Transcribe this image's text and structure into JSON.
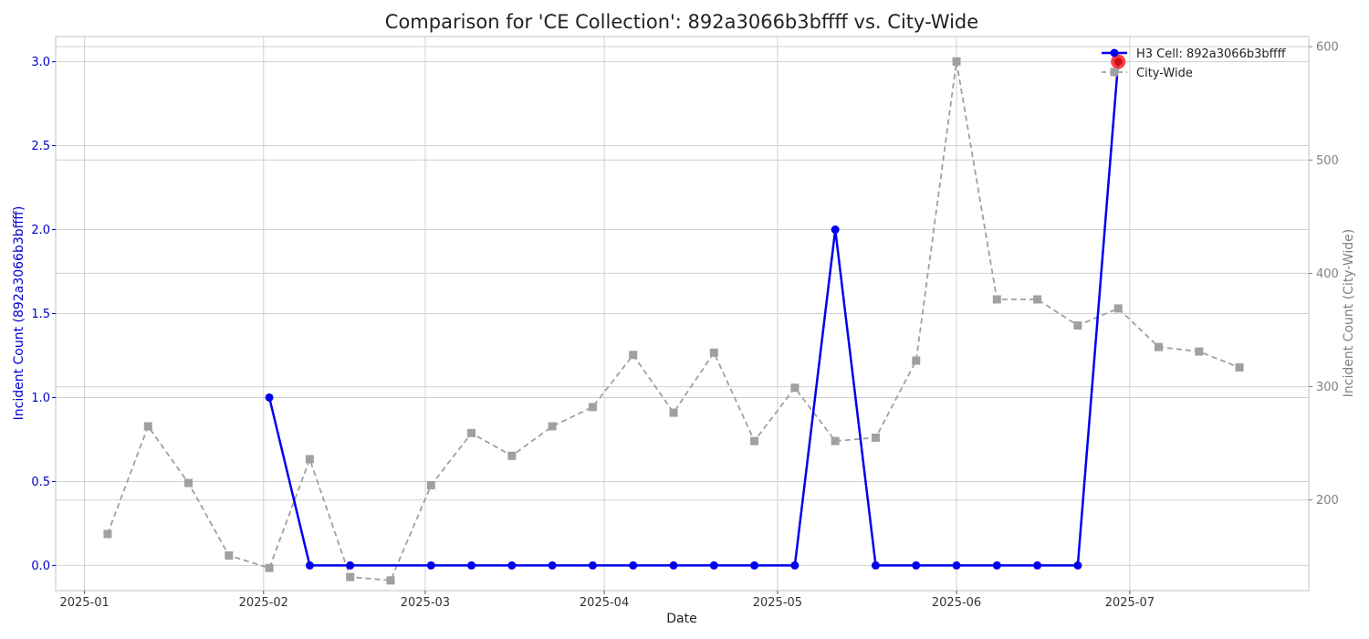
{
  "chart_data": {
    "type": "line",
    "title": "Comparison for 'CE Collection': 892a3066b3bffff vs. City-Wide",
    "xlabel": "Date",
    "ylabel_left": "Incident Count (892a3066b3bffff)",
    "ylabel_right": "Incident Count (City-Wide)",
    "x_ticks": [
      "2025-01",
      "2025-02",
      "2025-03",
      "2025-04",
      "2025-05",
      "2025-06",
      "2025-07"
    ],
    "y_left_ticks": [
      "0.0",
      "0.5",
      "1.0",
      "1.5",
      "2.0",
      "2.5",
      "3.0"
    ],
    "y_right_ticks": [
      "200",
      "300",
      "400",
      "500",
      "600"
    ],
    "ylim_left": [
      -0.15,
      3.15
    ],
    "ylim_right": [
      120,
      609
    ],
    "xlim": [
      "2024-12-27",
      "2025-08-01"
    ],
    "grid": true,
    "legend_position": "top-right",
    "colors": {
      "cell_series": "#0000ee",
      "city_series": "#a0a0a0",
      "highlight": "#ff2020",
      "left_axis_text": "#0000cc",
      "right_axis_text": "#808080"
    },
    "series": [
      {
        "name": "H3 Cell: 892a3066b3bffff",
        "axis": "left",
        "marker": "circle",
        "line": "solid",
        "points": [
          {
            "x": "2025-02-02",
            "y": 1
          },
          {
            "x": "2025-02-09",
            "y": 0
          },
          {
            "x": "2025-02-16",
            "y": 0
          },
          {
            "x": "2025-03-02",
            "y": 0
          },
          {
            "x": "2025-03-09",
            "y": 0
          },
          {
            "x": "2025-03-16",
            "y": 0
          },
          {
            "x": "2025-03-23",
            "y": 0
          },
          {
            "x": "2025-03-30",
            "y": 0
          },
          {
            "x": "2025-04-06",
            "y": 0
          },
          {
            "x": "2025-04-13",
            "y": 0
          },
          {
            "x": "2025-04-20",
            "y": 0
          },
          {
            "x": "2025-04-27",
            "y": 0
          },
          {
            "x": "2025-05-04",
            "y": 0
          },
          {
            "x": "2025-05-11",
            "y": 2
          },
          {
            "x": "2025-05-18",
            "y": 0
          },
          {
            "x": "2025-05-25",
            "y": 0
          },
          {
            "x": "2025-06-01",
            "y": 0
          },
          {
            "x": "2025-06-08",
            "y": 0
          },
          {
            "x": "2025-06-15",
            "y": 0
          },
          {
            "x": "2025-06-22",
            "y": 0
          },
          {
            "x": "2025-06-29",
            "y": 3
          }
        ],
        "highlight_point": {
          "x": "2025-06-29",
          "y": 3
        }
      },
      {
        "name": "City-Wide",
        "axis": "right",
        "marker": "square",
        "line": "dashed",
        "points": [
          {
            "x": "2025-01-05",
            "y": 170
          },
          {
            "x": "2025-01-12",
            "y": 265
          },
          {
            "x": "2025-01-19",
            "y": 215
          },
          {
            "x": "2025-01-26",
            "y": 151
          },
          {
            "x": "2025-02-02",
            "y": 140
          },
          {
            "x": "2025-02-09",
            "y": 236
          },
          {
            "x": "2025-02-16",
            "y": 132
          },
          {
            "x": "2025-02-23",
            "y": 129
          },
          {
            "x": "2025-03-02",
            "y": 213
          },
          {
            "x": "2025-03-09",
            "y": 259
          },
          {
            "x": "2025-03-16",
            "y": 239
          },
          {
            "x": "2025-03-23",
            "y": 265
          },
          {
            "x": "2025-03-30",
            "y": 282
          },
          {
            "x": "2025-04-06",
            "y": 328
          },
          {
            "x": "2025-04-13",
            "y": 277
          },
          {
            "x": "2025-04-20",
            "y": 330
          },
          {
            "x": "2025-04-27",
            "y": 252
          },
          {
            "x": "2025-05-04",
            "y": 299
          },
          {
            "x": "2025-05-11",
            "y": 252
          },
          {
            "x": "2025-05-18",
            "y": 255
          },
          {
            "x": "2025-05-25",
            "y": 323
          },
          {
            "x": "2025-06-01",
            "y": 587
          },
          {
            "x": "2025-06-08",
            "y": 377
          },
          {
            "x": "2025-06-15",
            "y": 377
          },
          {
            "x": "2025-06-22",
            "y": 354
          },
          {
            "x": "2025-06-29",
            "y": 369
          },
          {
            "x": "2025-07-06",
            "y": 335
          },
          {
            "x": "2025-07-13",
            "y": 331
          },
          {
            "x": "2025-07-20",
            "y": 317
          }
        ]
      }
    ]
  }
}
